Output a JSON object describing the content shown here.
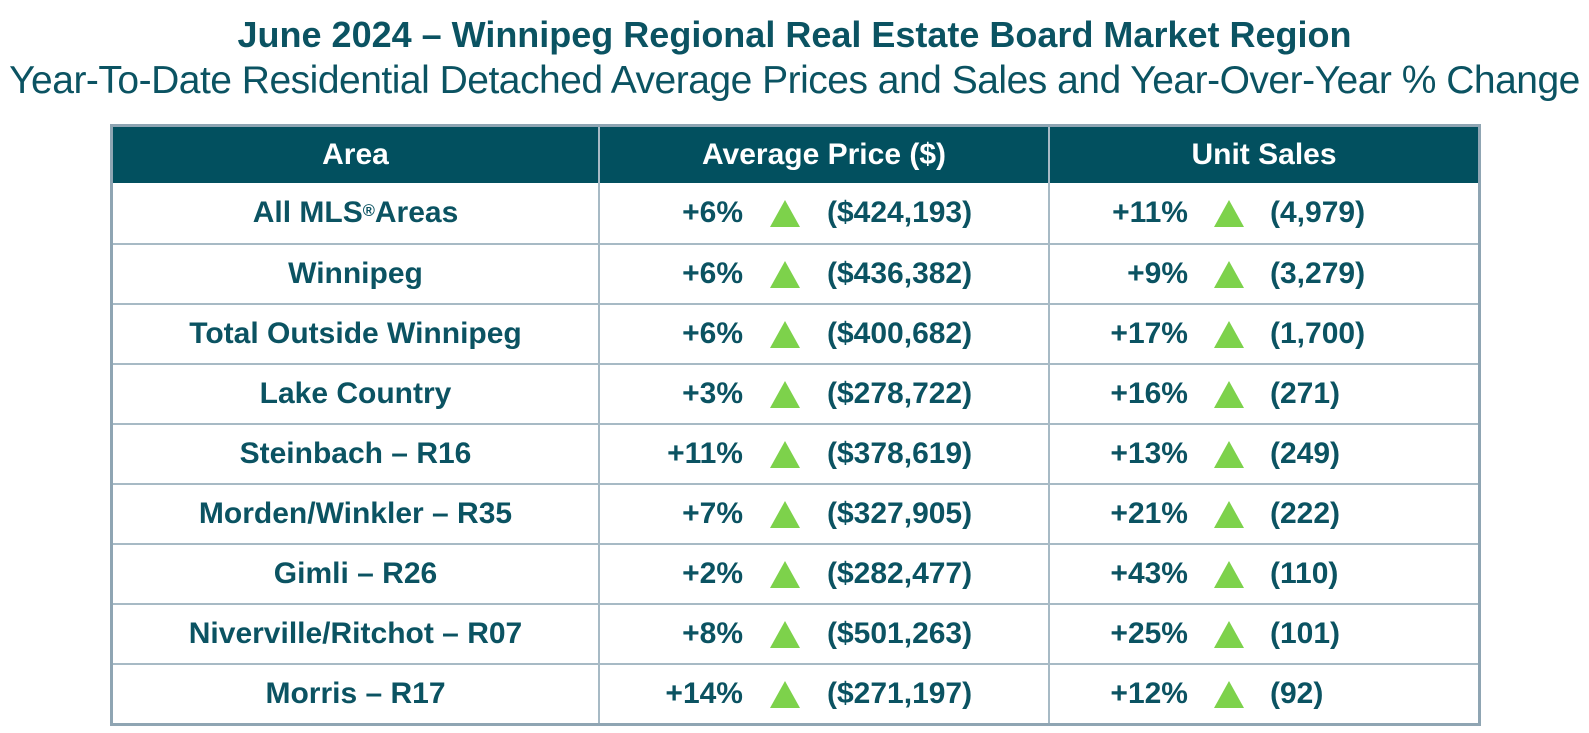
{
  "page": {
    "title": "June 2024 – Winnipeg Regional Real Estate Board Market Region",
    "subtitle": "Year-To-Date Residential Detached Average Prices and Sales and Year-Over-Year % Change"
  },
  "colors": {
    "header_bg": "#02505F",
    "teal_text": "#0B5362",
    "up_arrow_green": "#7DD24B",
    "grid_border": "#A7BAC5"
  },
  "chart_data": {
    "type": "table",
    "title": "June 2024 – Winnipeg Regional Real Estate Board Market Region",
    "subtitle": "Year-To-Date Residential Detached Average Prices and Sales and Year-Over-Year % Change",
    "columns": [
      "Area",
      "Average Price ($)",
      "Unit Sales"
    ],
    "rows": [
      {
        "area": "All MLS® Areas",
        "price_pct_change": "+6%",
        "price_direction": "up",
        "price_display": "($424,193)",
        "avg_price": 424193,
        "sales_pct_change": "+11%",
        "sales_direction": "up",
        "sales_display": "(4,979)",
        "unit_sales": 4979
      },
      {
        "area": "Winnipeg",
        "price_pct_change": "+6%",
        "price_direction": "up",
        "price_display": "($436,382)",
        "avg_price": 436382,
        "sales_pct_change": "+9%",
        "sales_direction": "up",
        "sales_display": "(3,279)",
        "unit_sales": 3279
      },
      {
        "area": "Total Outside Winnipeg",
        "price_pct_change": "+6%",
        "price_direction": "up",
        "price_display": "($400,682)",
        "avg_price": 400682,
        "sales_pct_change": "+17%",
        "sales_direction": "up",
        "sales_display": "(1,700)",
        "unit_sales": 1700
      },
      {
        "area": "Lake Country",
        "price_pct_change": "+3%",
        "price_direction": "up",
        "price_display": "($278,722)",
        "avg_price": 278722,
        "sales_pct_change": "+16%",
        "sales_direction": "up",
        "sales_display": "(271)",
        "unit_sales": 271
      },
      {
        "area": "Steinbach – R16",
        "price_pct_change": "+11%",
        "price_direction": "up",
        "price_display": "($378,619)",
        "avg_price": 378619,
        "sales_pct_change": "+13%",
        "sales_direction": "up",
        "sales_display": "(249)",
        "unit_sales": 249
      },
      {
        "area": "Morden/Winkler – R35",
        "price_pct_change": "+7%",
        "price_direction": "up",
        "price_display": "($327,905)",
        "avg_price": 327905,
        "sales_pct_change": "+21%",
        "sales_direction": "up",
        "sales_display": "(222)",
        "unit_sales": 222
      },
      {
        "area": "Gimli – R26",
        "price_pct_change": "+2%",
        "price_direction": "up",
        "price_display": "($282,477)",
        "avg_price": 282477,
        "sales_pct_change": "+43%",
        "sales_direction": "up",
        "sales_display": "(110)",
        "unit_sales": 110
      },
      {
        "area": "Niverville/Ritchot – R07",
        "price_pct_change": "+8%",
        "price_direction": "up",
        "price_display": "($501,263)",
        "avg_price": 501263,
        "sales_pct_change": "+25%",
        "sales_direction": "up",
        "sales_display": "(101)",
        "unit_sales": 101
      },
      {
        "area": "Morris – R17",
        "price_pct_change": "+14%",
        "price_direction": "up",
        "price_display": "($271,197)",
        "avg_price": 271197,
        "sales_pct_change": "+12%",
        "sales_direction": "up",
        "sales_display": "(92)",
        "unit_sales": 92
      }
    ]
  }
}
